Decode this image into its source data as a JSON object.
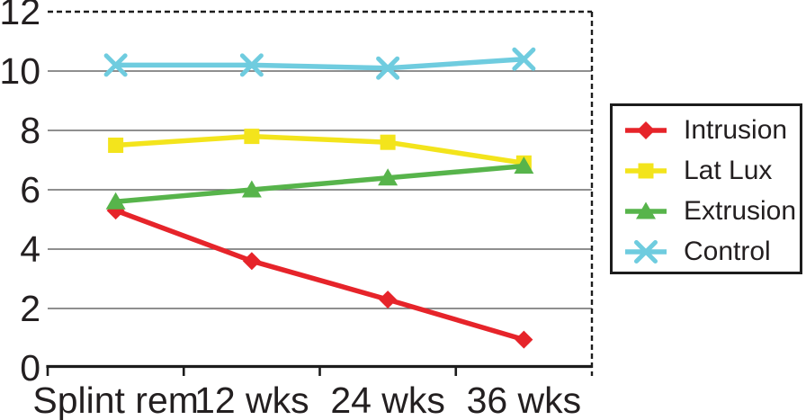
{
  "chart_data": {
    "type": "line",
    "categories": [
      "Splint rem",
      "12 wks",
      "24 wks",
      "36 wks"
    ],
    "series": [
      {
        "name": "Intrusion",
        "marker": "diamond",
        "color": "#e6242a",
        "values": [
          5.3,
          3.6,
          2.3,
          0.95
        ]
      },
      {
        "name": "Lat Lux",
        "marker": "square",
        "color": "#f3e41c",
        "values": [
          7.5,
          7.8,
          7.6,
          6.9
        ]
      },
      {
        "name": "Extrusion",
        "marker": "triangle",
        "color": "#57b44b",
        "values": [
          5.6,
          6.0,
          6.4,
          6.8
        ]
      },
      {
        "name": "Control",
        "marker": "x",
        "color": "#6fccdf",
        "values": [
          10.2,
          10.2,
          10.1,
          10.4
        ]
      }
    ],
    "yticks": [
      0,
      2,
      4,
      6,
      8,
      10,
      12
    ],
    "ylim": [
      0,
      12
    ],
    "grid": "horizontal solid gray lines at 2,4,6,8,10; top (12) gridline dashed; right plot border dashed; no left border",
    "legend_position": "right"
  },
  "colors": {
    "grid": "#6a6a6a",
    "axis": "#1c1c1c",
    "text": "#231f20",
    "background": "#ffffff"
  }
}
